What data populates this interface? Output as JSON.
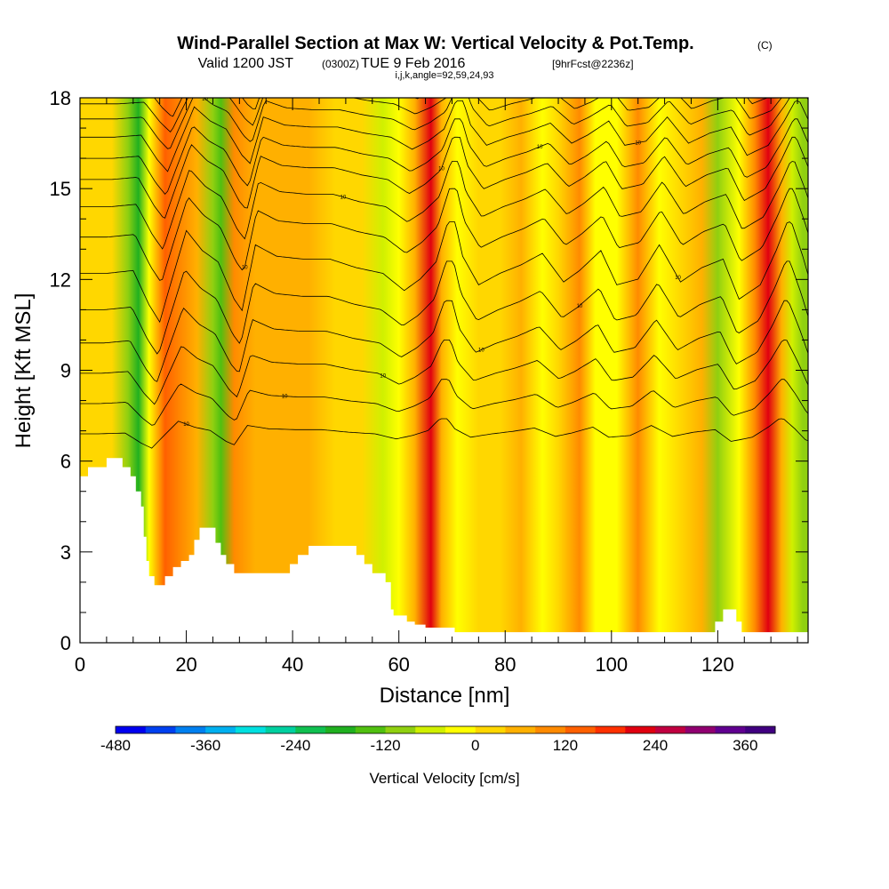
{
  "title": {
    "main": "Wind-Parallel Section at Max W: Vertical Velocity & Pot.Temp.",
    "copyright": "(C)",
    "valid_prefix": "Valid 1200 JST",
    "valid_utc": "(0300Z)",
    "valid_date": "TUE 9 Feb 2016",
    "forecast": "[9hrFcst@2236z]",
    "section_info": "i,j,k,angle=92,59,24,93"
  },
  "chart_data": {
    "type": "heatmap",
    "xlabel": "Distance [nm]",
    "ylabel": "Height [Kft MSL]",
    "xlim": [
      0,
      137
    ],
    "ylim": [
      0,
      18
    ],
    "x_ticks": [
      0,
      20,
      40,
      60,
      80,
      100,
      120
    ],
    "y_ticks": [
      0,
      3,
      6,
      9,
      12,
      15,
      18
    ],
    "grid": false,
    "colorbar": {
      "title": "Vertical Velocity [cm/s]",
      "min": -480,
      "max": 400,
      "step": 40,
      "tick_labels": [
        -480,
        -360,
        -240,
        -120,
        0,
        120,
        240,
        360
      ],
      "colors": [
        "#0000f0",
        "#0040f0",
        "#0080f0",
        "#00b0f0",
        "#00e0e0",
        "#00d0a0",
        "#10c050",
        "#20b020",
        "#50c010",
        "#90d010",
        "#d0f000",
        "#ffff00",
        "#ffd700",
        "#ffb000",
        "#ff8a00",
        "#ff6000",
        "#ff3000",
        "#e00010",
        "#c00040",
        "#900070",
        "#600090",
        "#400080"
      ]
    },
    "vertical_velocity_bands": [
      {
        "x": 1,
        "w": 0
      },
      {
        "x": 6,
        "w": 10
      },
      {
        "x": 9,
        "w": -110
      },
      {
        "x": 11,
        "w": -170
      },
      {
        "x": 13,
        "w": -40
      },
      {
        "x": 16,
        "w": 150
      },
      {
        "x": 19,
        "w": 80
      },
      {
        "x": 22,
        "w": 40
      },
      {
        "x": 25,
        "w": -90
      },
      {
        "x": 26.5,
        "w": -130
      },
      {
        "x": 29,
        "w": 100
      },
      {
        "x": 33,
        "w": 60
      },
      {
        "x": 38,
        "w": 50
      },
      {
        "x": 43,
        "w": 50
      },
      {
        "x": 48,
        "w": 20
      },
      {
        "x": 53,
        "w": 0
      },
      {
        "x": 57,
        "w": -60
      },
      {
        "x": 60,
        "w": -20
      },
      {
        "x": 63,
        "w": 40
      },
      {
        "x": 66,
        "w": 230
      },
      {
        "x": 68,
        "w": 60
      },
      {
        "x": 71,
        "w": -40
      },
      {
        "x": 75,
        "w": 0
      },
      {
        "x": 79,
        "w": 30
      },
      {
        "x": 83,
        "w": 70
      },
      {
        "x": 87,
        "w": -30
      },
      {
        "x": 90,
        "w": 10
      },
      {
        "x": 94,
        "w": 80
      },
      {
        "x": 97,
        "w": -40
      },
      {
        "x": 101,
        "w": -20
      },
      {
        "x": 105,
        "w": 100
      },
      {
        "x": 109,
        "w": -30
      },
      {
        "x": 113,
        "w": 20
      },
      {
        "x": 117,
        "w": 50
      },
      {
        "x": 120,
        "w": -90
      },
      {
        "x": 124,
        "w": -40
      },
      {
        "x": 127,
        "w": 80
      },
      {
        "x": 129.5,
        "w": 200
      },
      {
        "x": 132,
        "w": 60
      },
      {
        "x": 134,
        "w": -70
      },
      {
        "x": 136,
        "w": -120
      }
    ],
    "terrain": [
      [
        0,
        5.5
      ],
      [
        1.5,
        5.5
      ],
      [
        1.5,
        5.8
      ],
      [
        5,
        5.8
      ],
      [
        5,
        6.1
      ],
      [
        8,
        6.1
      ],
      [
        8,
        5.8
      ],
      [
        9.5,
        5.8
      ],
      [
        9.5,
        5.5
      ],
      [
        10.5,
        5.5
      ],
      [
        10.5,
        5.0
      ],
      [
        11.5,
        5.0
      ],
      [
        11.5,
        4.5
      ],
      [
        12,
        4.5
      ],
      [
        12,
        3.5
      ],
      [
        12.5,
        3.5
      ],
      [
        12.5,
        2.7
      ],
      [
        13,
        2.7
      ],
      [
        13,
        2.2
      ],
      [
        14,
        2.2
      ],
      [
        14,
        1.9
      ],
      [
        16,
        1.9
      ],
      [
        16,
        2.2
      ],
      [
        17.5,
        2.2
      ],
      [
        17.5,
        2.5
      ],
      [
        19,
        2.5
      ],
      [
        19,
        2.7
      ],
      [
        20.5,
        2.7
      ],
      [
        20.5,
        2.9
      ],
      [
        21.5,
        2.9
      ],
      [
        21.5,
        3.4
      ],
      [
        22.5,
        3.4
      ],
      [
        22.5,
        3.8
      ],
      [
        25.5,
        3.8
      ],
      [
        25.5,
        3.3
      ],
      [
        26.5,
        3.3
      ],
      [
        26.5,
        2.9
      ],
      [
        27.5,
        2.9
      ],
      [
        27.5,
        2.6
      ],
      [
        29,
        2.6
      ],
      [
        29,
        2.3
      ],
      [
        39.5,
        2.3
      ],
      [
        39.5,
        2.6
      ],
      [
        41,
        2.6
      ],
      [
        41,
        2.9
      ],
      [
        43,
        2.9
      ],
      [
        43,
        3.2
      ],
      [
        52,
        3.2
      ],
      [
        52,
        2.9
      ],
      [
        53.5,
        2.9
      ],
      [
        53.5,
        2.6
      ],
      [
        55,
        2.6
      ],
      [
        55,
        2.3
      ],
      [
        57.5,
        2.3
      ],
      [
        57.5,
        2.0
      ],
      [
        58.5,
        2.0
      ],
      [
        58.5,
        1.1
      ],
      [
        59,
        1.1
      ],
      [
        59,
        0.9
      ],
      [
        61.5,
        0.9
      ],
      [
        61.5,
        0.7
      ],
      [
        63,
        0.7
      ],
      [
        63,
        0.6
      ],
      [
        65,
        0.6
      ],
      [
        65,
        0.5
      ],
      [
        70.5,
        0.5
      ],
      [
        70.5,
        0.35
      ],
      [
        119.5,
        0.35
      ],
      [
        119.5,
        0.7
      ],
      [
        121,
        0.7
      ],
      [
        121,
        1.1
      ],
      [
        123.5,
        1.1
      ],
      [
        123.5,
        0.7
      ],
      [
        124.5,
        0.7
      ],
      [
        124.5,
        0.35
      ],
      [
        137,
        0.35
      ]
    ],
    "potential_temperature_contours": {
      "base_kft": [
        6.9,
        7.9,
        8.9,
        9.9,
        11.0,
        12.2,
        13.4,
        14.4,
        15.3,
        16.0,
        16.7,
        17.3,
        17.8,
        18.3
      ],
      "amplitude_kft": [
        0.5,
        0.8,
        1.1,
        1.4,
        1.6,
        1.7,
        1.6,
        1.5,
        1.4,
        1.3,
        1.2,
        1.1,
        1.0,
        1.0
      ],
      "label_text": "10"
    }
  }
}
